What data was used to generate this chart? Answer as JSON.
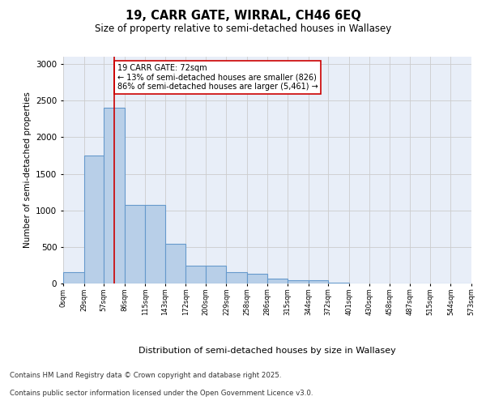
{
  "title_line1": "19, CARR GATE, WIRRAL, CH46 6EQ",
  "title_line2": "Size of property relative to semi-detached houses in Wallasey",
  "xlabel": "Distribution of semi-detached houses by size in Wallasey",
  "ylabel": "Number of semi-detached properties",
  "background_color": "#e8eef8",
  "bar_color": "#b8cfe8",
  "bar_edge_color": "#6699cc",
  "bin_edges": [
    0,
    29,
    57,
    86,
    115,
    143,
    172,
    200,
    229,
    258,
    286,
    315,
    344,
    372,
    401,
    430,
    458,
    487,
    515,
    544,
    573
  ],
  "bar_heights": [
    150,
    1750,
    2400,
    1075,
    1075,
    540,
    245,
    245,
    150,
    135,
    65,
    40,
    40,
    8,
    0,
    0,
    0,
    0,
    0,
    0
  ],
  "bin_labels": [
    "0sqm",
    "29sqm",
    "57sqm",
    "86sqm",
    "115sqm",
    "143sqm",
    "172sqm",
    "200sqm",
    "229sqm",
    "258sqm",
    "286sqm",
    "315sqm",
    "344sqm",
    "372sqm",
    "401sqm",
    "430sqm",
    "458sqm",
    "487sqm",
    "515sqm",
    "544sqm",
    "573sqm"
  ],
  "vline_x": 72,
  "vline_color": "#cc0000",
  "annotation_text": "19 CARR GATE: 72sqm\n← 13% of semi-detached houses are smaller (826)\n86% of semi-detached houses are larger (5,461) →",
  "annotation_box_color": "#ffffff",
  "annotation_box_edge": "#cc0000",
  "ylim": [
    0,
    3100
  ],
  "yticks": [
    0,
    500,
    1000,
    1500,
    2000,
    2500,
    3000
  ],
  "footer_line1": "Contains HM Land Registry data © Crown copyright and database right 2025.",
  "footer_line2": "Contains public sector information licensed under the Open Government Licence v3.0."
}
